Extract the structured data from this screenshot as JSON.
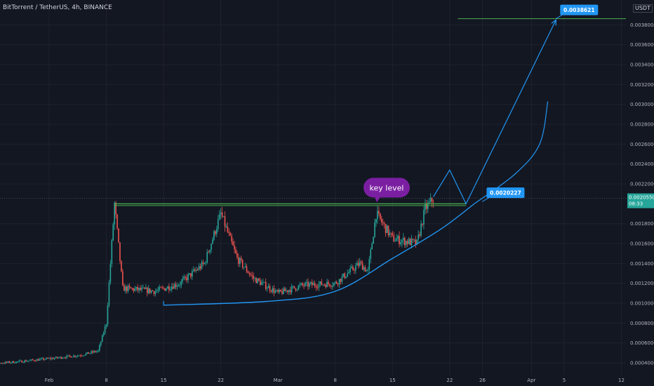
{
  "header": {
    "symbol_title": "BitTorrent / TetherUS, 4h, BINANCE",
    "currency": "USDT"
  },
  "colors": {
    "background": "#131722",
    "grid": "#1e222d",
    "up_candle": "#26a69a",
    "down_candle": "#ef5350",
    "resistance_line": "#4caf50",
    "curve": "#2196f3",
    "price_tag": "#2196f3",
    "last_price_tag": "#26a69a",
    "bubble": "#7b1fa2"
  },
  "chart_data": {
    "type": "candlestick",
    "x_tick_labels": [
      "Feb",
      "8",
      "15",
      "22",
      "Mar",
      "8",
      "15",
      "22",
      "26",
      "Apr",
      "5",
      "12"
    ],
    "y_tick_labels": [
      "0.0004000",
      "0.0006000",
      "0.0008000",
      "0.0010000",
      "0.0012000",
      "0.0014000",
      "0.0016000",
      "0.0018000",
      "0.0022000",
      "0.0024000",
      "0.0026000",
      "0.0028000",
      "0.0030000",
      "0.0032000",
      "0.0034000",
      "0.0036000",
      "0.0038000"
    ],
    "y_ticks": [
      0.0004,
      0.0006,
      0.0008,
      0.001,
      0.0012,
      0.0014,
      0.0016,
      0.0018,
      0.0022,
      0.0024,
      0.0026,
      0.0028,
      0.003,
      0.0032,
      0.0034,
      0.0036,
      0.0038
    ],
    "ylim": [
      0.00028,
      0.00405
    ],
    "grid": true,
    "path_anchors": [
      [
        "2021-01-23",
        0.00038
      ],
      [
        "2021-01-28",
        0.00041
      ],
      [
        "2021-02-02",
        0.00045
      ],
      [
        "2021-02-05",
        0.00048
      ],
      [
        "2021-02-07",
        0.00052
      ],
      [
        "2021-02-08",
        0.0008
      ],
      [
        "2021-02-09",
        0.002
      ],
      [
        "2021-02-10",
        0.00115
      ],
      [
        "2021-02-14",
        0.00112
      ],
      [
        "2021-02-17",
        0.0012
      ],
      [
        "2021-02-20",
        0.0014
      ],
      [
        "2021-02-22",
        0.0019
      ],
      [
        "2021-02-24",
        0.00145
      ],
      [
        "2021-02-26",
        0.00125
      ],
      [
        "2021-03-01",
        0.0011
      ],
      [
        "2021-03-04",
        0.00118
      ],
      [
        "2021-03-08",
        0.0012
      ],
      [
        "2021-03-11",
        0.0014
      ],
      [
        "2021-03-12",
        0.00132
      ],
      [
        "2021-03-13",
        0.0019
      ],
      [
        "2021-03-15",
        0.00165
      ],
      [
        "2021-03-18",
        0.0016
      ],
      [
        "2021-03-19",
        0.00195
      ],
      [
        "2021-03-20",
        0.00205
      ]
    ],
    "annotations": {
      "resistance": {
        "price": 0.002,
        "from": "2021-02-09",
        "to": "2021-03-24"
      },
      "target_line": {
        "price": 0.0038621,
        "from": "2021-03-23",
        "to": "2021-04-14"
      },
      "rounding_bottom": [
        [
          "2021-02-15",
          0.00098
        ],
        [
          "2021-02-28",
          0.00102
        ],
        [
          "2021-03-08",
          0.00112
        ],
        [
          "2021-03-15",
          0.00145
        ],
        [
          "2021-03-21",
          0.00175
        ],
        [
          "2021-03-25",
          0.002
        ]
      ],
      "zigzag": [
        [
          "2021-03-20",
          0.00207
        ],
        [
          "2021-03-22",
          0.00234
        ],
        [
          "2021-03-24",
          0.002
        ],
        [
          "2021-04-04",
          0.00385
        ]
      ],
      "curve_extension": [
        [
          "2021-03-25",
          0.002
        ],
        [
          "2021-03-30",
          0.0023
        ],
        [
          "2021-04-02",
          0.0026
        ],
        [
          "2021-04-03",
          0.00303
        ]
      ],
      "price_labels": [
        {
          "text": "0.0038621",
          "price": 0.0038621,
          "date": "2021-04-04"
        },
        {
          "text": "0.0020227",
          "price": 0.0020227,
          "date": "2021-03-26"
        }
      ],
      "key_level": {
        "text": "key level",
        "price": 0.002,
        "date": "2021-03-13"
      },
      "last_price": {
        "price_text": "0.0020550",
        "countdown": "08:33",
        "price": 0.002055
      }
    }
  }
}
